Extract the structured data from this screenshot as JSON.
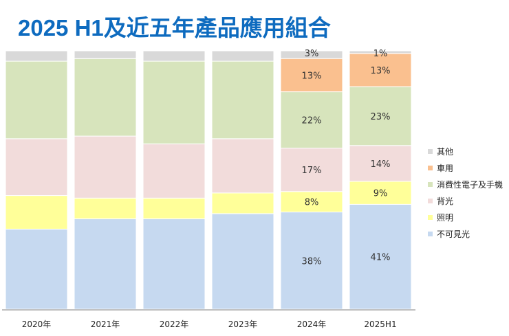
{
  "chart_data": {
    "type": "bar",
    "stacked": "percent",
    "title": "2025 H1及近五年產品應用組合",
    "categories": [
      "2020年",
      "2021年",
      "2022年",
      "2023年",
      "2024年",
      "2025H1"
    ],
    "ylim": [
      0,
      100
    ],
    "grid": false,
    "legend_position": "right",
    "series": [
      {
        "name": "不可見光",
        "color": "#c6d9f0",
        "values": [
          31,
          35,
          35,
          37,
          38,
          41
        ],
        "labels": [
          null,
          null,
          null,
          null,
          "38%",
          "41%"
        ]
      },
      {
        "name": "照明",
        "color": "#ffff99",
        "values": [
          13,
          8,
          8,
          8,
          8,
          9
        ],
        "labels": [
          null,
          null,
          null,
          null,
          "8%",
          "9%"
        ]
      },
      {
        "name": "背光",
        "color": "#f2dcdb",
        "values": [
          22,
          24,
          21,
          21,
          17,
          14
        ],
        "labels": [
          null,
          null,
          null,
          null,
          "17%",
          "14%"
        ]
      },
      {
        "name": "消費性電子及手機",
        "color": "#d7e4bc",
        "values": [
          30,
          30,
          32,
          30,
          22,
          23
        ],
        "labels": [
          null,
          null,
          null,
          null,
          "22%",
          "23%"
        ]
      },
      {
        "name": "車用",
        "color": "#fac08f",
        "values": [
          0,
          0,
          0,
          0,
          13,
          13
        ],
        "labels": [
          null,
          null,
          null,
          null,
          "13%",
          "13%"
        ]
      },
      {
        "name": "其他",
        "color": "#d9d9d9",
        "values": [
          4,
          3,
          4,
          4,
          3,
          1
        ],
        "labels": [
          null,
          null,
          null,
          null,
          "3%",
          "1%"
        ]
      }
    ]
  }
}
